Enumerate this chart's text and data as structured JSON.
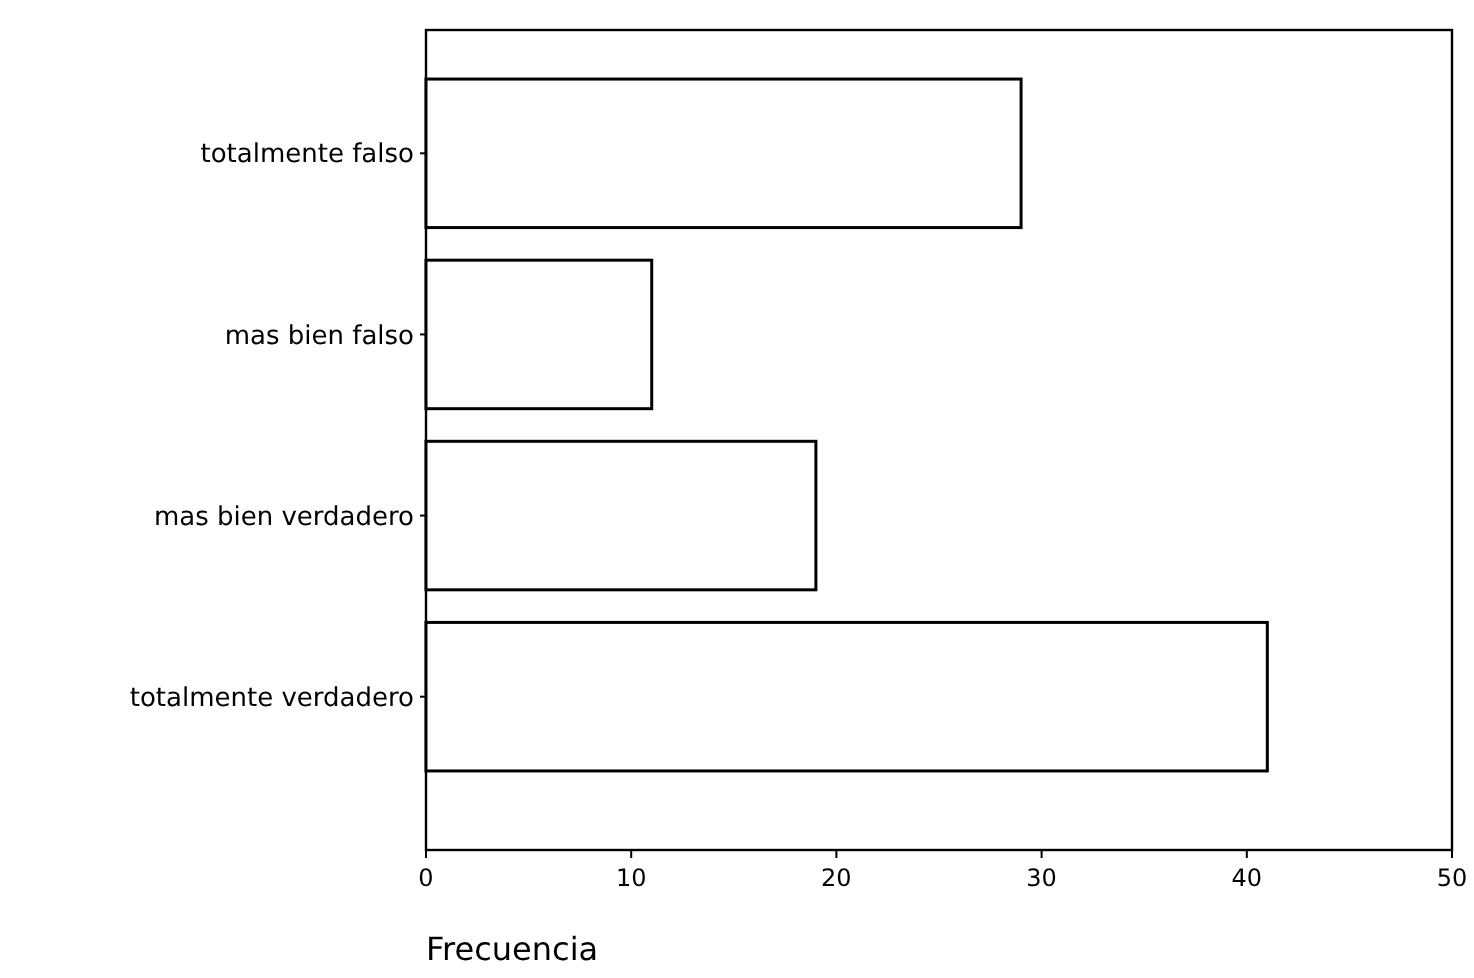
{
  "chart_data": {
    "type": "bar",
    "orientation": "horizontal",
    "categories": [
      "totalmente falso",
      "mas bien falso",
      "mas bien verdadero",
      "totalmente verdadero"
    ],
    "values": [
      29,
      11,
      19,
      41
    ],
    "color": "#ffffff",
    "xlabel": "Frecuencia",
    "xlim": [
      0,
      50
    ],
    "xticks": [
      0,
      10,
      20,
      30,
      40,
      50
    ],
    "grid": false
  }
}
